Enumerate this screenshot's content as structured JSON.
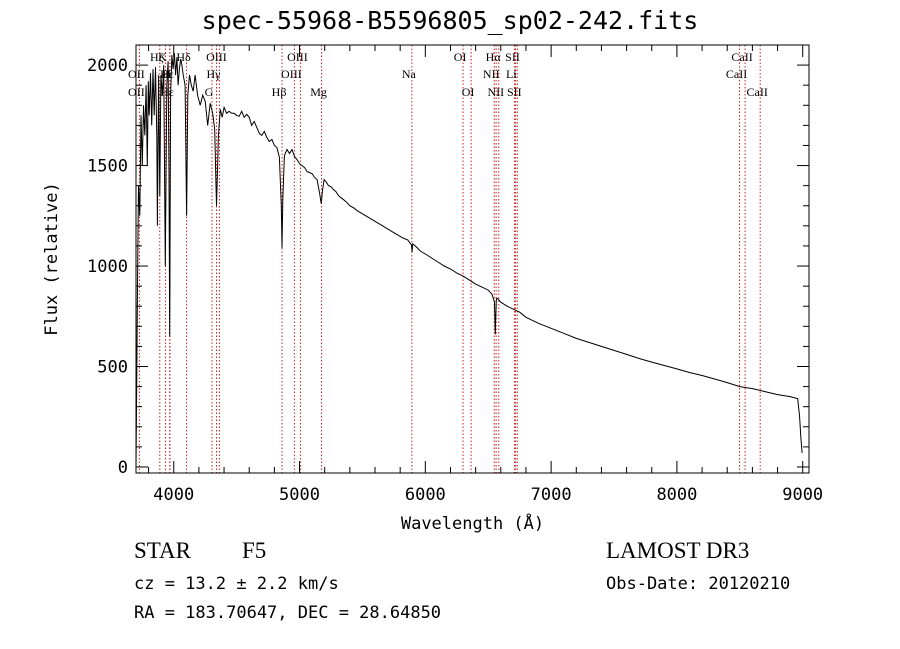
{
  "header": {
    "title": "spec-55968-B5596805_sp02-242.fits"
  },
  "info": {
    "object_class": "STAR",
    "subclass": "F5",
    "survey": "LAMOST DR3",
    "cz": "cz = 13.2 ± 2.2 km/s",
    "obs_date": "Obs-Date: 20120210",
    "radec": "RA = 183.70647, DEC =  28.64850"
  },
  "colors": {
    "spectrum": "#000000",
    "line_markers": "#cc2222",
    "axes": "#000000"
  },
  "chart_data": {
    "type": "line",
    "title": "spec-55968-B5596805_sp02-242.fits",
    "xlabel": "Wavelength (Å)",
    "ylabel": "Flux (relative)",
    "xlim": [
      3700,
      9050
    ],
    "ylim": [
      -30,
      2100
    ],
    "xticks": [
      4000,
      5000,
      6000,
      7000,
      8000,
      9000
    ],
    "yticks": [
      0,
      500,
      1000,
      1500,
      2000
    ],
    "x_minor_step": 200,
    "y_minor_step": 100,
    "series": [
      {
        "name": "flux",
        "x": [
          3700,
          3705,
          3712,
          3720,
          3730,
          3740,
          3750,
          3760,
          3770,
          3780,
          3790,
          3798,
          3805,
          3815,
          3825,
          3835,
          3845,
          3855,
          3865,
          3870,
          3880,
          3889,
          3898,
          3910,
          3920,
          3933,
          3945,
          3955,
          3962,
          3968,
          3975,
          3985,
          3995,
          4005,
          4015,
          4025,
          4035,
          4045,
          4055,
          4065,
          4075,
          4090,
          4102,
          4112,
          4125,
          4140,
          4155,
          4170,
          4190,
          4210,
          4230,
          4250,
          4270,
          4290,
          4310,
          4326,
          4335,
          4340,
          4346,
          4355,
          4370,
          4385,
          4400,
          4420,
          4440,
          4460,
          4480,
          4500,
          4520,
          4540,
          4560,
          4580,
          4600,
          4620,
          4640,
          4660,
          4680,
          4700,
          4720,
          4740,
          4760,
          4780,
          4800,
          4820,
          4840,
          4855,
          4861,
          4867,
          4880,
          4900,
          4920,
          4940,
          4960,
          4980,
          5000,
          5020,
          5040,
          5060,
          5080,
          5100,
          5120,
          5140,
          5160,
          5172,
          5183,
          5195,
          5210,
          5230,
          5250,
          5270,
          5290,
          5310,
          5330,
          5350,
          5370,
          5400,
          5430,
          5460,
          5500,
          5540,
          5580,
          5620,
          5660,
          5700,
          5740,
          5780,
          5820,
          5860,
          5890,
          5895,
          5900,
          5920,
          5960,
          6000,
          6050,
          6100,
          6150,
          6200,
          6250,
          6300,
          6350,
          6400,
          6450,
          6500,
          6530,
          6550,
          6556,
          6560,
          6564,
          6570,
          6580,
          6600,
          6650,
          6700,
          6750,
          6800,
          6900,
          7000,
          7100,
          7200,
          7300,
          7400,
          7500,
          7600,
          7700,
          7800,
          7900,
          8000,
          8100,
          8200,
          8300,
          8400,
          8500,
          8600,
          8700,
          8800,
          8900,
          8960,
          8975,
          8985,
          8995
        ],
        "y": [
          0,
          350,
          900,
          1400,
          1250,
          1750,
          1500,
          1800,
          1650,
          1900,
          1500,
          1920,
          1750,
          1960,
          1700,
          1980,
          1750,
          1990,
          1650,
          1200,
          1950,
          1350,
          1950,
          1850,
          2000,
          1000,
          1900,
          2020,
          1450,
          650,
          1850,
          2050,
          1980,
          2060,
          1950,
          2040,
          1900,
          1980,
          2030,
          2000,
          1950,
          1900,
          1250,
          1850,
          1950,
          1900,
          1870,
          1950,
          1850,
          1800,
          1850,
          1820,
          1700,
          1810,
          1760,
          1680,
          1420,
          1300,
          1440,
          1650,
          1780,
          1740,
          1790,
          1760,
          1770,
          1760,
          1760,
          1750,
          1745,
          1770,
          1740,
          1755,
          1740,
          1700,
          1720,
          1690,
          1660,
          1650,
          1670,
          1640,
          1620,
          1630,
          1600,
          1590,
          1540,
          1300,
          1090,
          1330,
          1550,
          1580,
          1560,
          1580,
          1545,
          1530,
          1510,
          1500,
          1490,
          1470,
          1465,
          1460,
          1440,
          1430,
          1360,
          1310,
          1380,
          1430,
          1420,
          1400,
          1395,
          1380,
          1370,
          1350,
          1340,
          1330,
          1320,
          1300,
          1290,
          1275,
          1260,
          1245,
          1230,
          1215,
          1200,
          1185,
          1170,
          1155,
          1140,
          1130,
          1105,
          1070,
          1110,
          1100,
          1075,
          1060,
          1040,
          1020,
          1000,
          985,
          965,
          950,
          930,
          910,
          895,
          880,
          860,
          820,
          660,
          750,
          830,
          840,
          835,
          820,
          800,
          785,
          770,
          745,
          715,
          690,
          665,
          640,
          620,
          600,
          580,
          560,
          540,
          522,
          505,
          488,
          470,
          455,
          438,
          420,
          400,
          390,
          375,
          360,
          350,
          340,
          250,
          150,
          70
        ]
      }
    ],
    "lines": [
      {
        "name": "Hζ",
        "wave": 3889,
        "row": 0
      },
      {
        "name": "OII",
        "wave": 3727,
        "row": 1
      },
      {
        "name": "OII",
        "wave": 3727,
        "row": 2
      },
      {
        "name": "Hε",
        "wave": 3970,
        "row": 1
      },
      {
        "name": "Hε",
        "wave": 3970,
        "row": 2
      },
      {
        "name": "K",
        "wave": 3934,
        "row": 0
      },
      {
        "name": "H",
        "wave": 3968,
        "row": 1
      },
      {
        "name": "Hδ",
        "wave": 4102,
        "row": 0
      },
      {
        "name": "G",
        "wave": 4304,
        "row": 2
      },
      {
        "name": "OIII",
        "wave": 4363,
        "row": 0
      },
      {
        "name": "Hγ",
        "wave": 4340,
        "row": 1
      },
      {
        "name": "Hβ",
        "wave": 4861,
        "row": 2
      },
      {
        "name": "OIII",
        "wave": 5007,
        "row": 0
      },
      {
        "name": "OIII",
        "wave": 4959,
        "row": 1
      },
      {
        "name": "Mg",
        "wave": 5175,
        "row": 2
      },
      {
        "name": "Na",
        "wave": 5893,
        "row": 1
      },
      {
        "name": "OI",
        "wave": 6300,
        "row": 0
      },
      {
        "name": "OI",
        "wave": 6364,
        "row": 2
      },
      {
        "name": "Hα",
        "wave": 6563,
        "row": 0
      },
      {
        "name": "NII",
        "wave": 6548,
        "row": 1
      },
      {
        "name": "NII",
        "wave": 6584,
        "row": 2
      },
      {
        "name": "SII",
        "wave": 6717,
        "row": 0
      },
      {
        "name": "Li",
        "wave": 6708,
        "row": 1
      },
      {
        "name": "SII",
        "wave": 6731,
        "row": 2
      },
      {
        "name": "CaII",
        "wave": 8542,
        "row": 0
      },
      {
        "name": "CaII",
        "wave": 8498,
        "row": 1
      },
      {
        "name": "CaII",
        "wave": 8662,
        "row": 2
      }
    ]
  }
}
